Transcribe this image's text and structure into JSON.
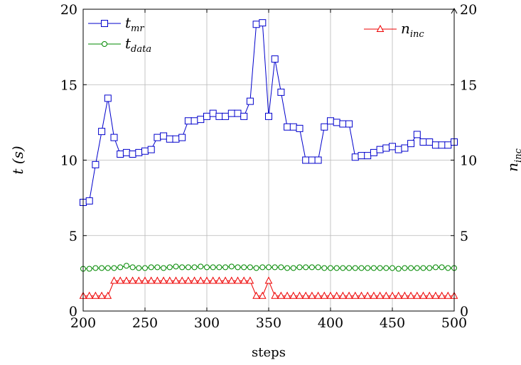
{
  "chart_data": {
    "type": "line",
    "xlabel": "steps",
    "ylabel_left": "t (s)",
    "ylabel_right": "n_inc",
    "xlim": [
      200,
      500
    ],
    "ylim_left": [
      0,
      20
    ],
    "ylim_right": [
      0,
      20
    ],
    "x_ticks": [
      200,
      250,
      300,
      350,
      400,
      450,
      500
    ],
    "y_ticks_left": [
      0,
      5,
      10,
      15,
      20
    ],
    "y_ticks_right": [
      0,
      5,
      10,
      15,
      20
    ],
    "grid": true,
    "legend_left": "top-left",
    "legend_right": "top-right",
    "x": [
      200,
      205,
      210,
      215,
      220,
      225,
      230,
      235,
      240,
      245,
      250,
      255,
      260,
      265,
      270,
      275,
      280,
      285,
      290,
      295,
      300,
      305,
      310,
      315,
      320,
      325,
      330,
      335,
      340,
      345,
      350,
      355,
      360,
      365,
      370,
      375,
      380,
      385,
      390,
      395,
      400,
      405,
      410,
      415,
      420,
      425,
      430,
      435,
      440,
      445,
      450,
      455,
      460,
      465,
      470,
      475,
      480,
      485,
      490,
      495,
      500
    ],
    "series": [
      {
        "name": "t_mr",
        "axis": "left",
        "color": "#0000cc",
        "marker": "square",
        "values": [
          7.2,
          7.3,
          9.7,
          11.9,
          14.1,
          11.5,
          10.4,
          10.5,
          10.4,
          10.5,
          10.6,
          10.7,
          11.5,
          11.6,
          11.4,
          11.4,
          11.5,
          12.6,
          12.6,
          12.7,
          12.9,
          13.1,
          12.9,
          12.9,
          13.1,
          13.1,
          12.9,
          13.9,
          19.0,
          19.1,
          12.9,
          16.7,
          14.5,
          12.2,
          12.2,
          12.1,
          10.0,
          10.0,
          10.0,
          12.2,
          12.6,
          12.5,
          12.4,
          12.4,
          10.2,
          10.3,
          10.3,
          10.5,
          10.7,
          10.8,
          10.9,
          10.7,
          10.8,
          11.1,
          11.7,
          11.2,
          11.2,
          11.0,
          11.0,
          11.0,
          11.2
        ]
      },
      {
        "name": "t_data",
        "axis": "left",
        "color": "#008800",
        "marker": "circle",
        "values": [
          2.8,
          2.8,
          2.85,
          2.85,
          2.85,
          2.85,
          2.9,
          3.0,
          2.9,
          2.85,
          2.85,
          2.9,
          2.9,
          2.85,
          2.9,
          2.95,
          2.9,
          2.9,
          2.9,
          2.95,
          2.9,
          2.9,
          2.9,
          2.9,
          2.95,
          2.9,
          2.9,
          2.9,
          2.85,
          2.9,
          2.9,
          2.9,
          2.9,
          2.85,
          2.85,
          2.9,
          2.9,
          2.9,
          2.9,
          2.85,
          2.85,
          2.85,
          2.85,
          2.85,
          2.85,
          2.85,
          2.85,
          2.85,
          2.85,
          2.85,
          2.85,
          2.8,
          2.85,
          2.85,
          2.85,
          2.85,
          2.85,
          2.9,
          2.9,
          2.85,
          2.85
        ]
      },
      {
        "name": "n_inc",
        "axis": "right",
        "color": "#ee0000",
        "marker": "triangle",
        "values": [
          1,
          1,
          1,
          1,
          1,
          2,
          2,
          2,
          2,
          2,
          2,
          2,
          2,
          2,
          2,
          2,
          2,
          2,
          2,
          2,
          2,
          2,
          2,
          2,
          2,
          2,
          2,
          2,
          1,
          1,
          2,
          1,
          1,
          1,
          1,
          1,
          1,
          1,
          1,
          1,
          1,
          1,
          1,
          1,
          1,
          1,
          1,
          1,
          1,
          1,
          1,
          1,
          1,
          1,
          1,
          1,
          1,
          1,
          1,
          1,
          1
        ]
      }
    ],
    "legend_labels": {
      "t_mr": {
        "base": "t",
        "sub": "mr"
      },
      "t_data": {
        "base": "t",
        "sub": "data"
      },
      "n_inc": {
        "base": "n",
        "sub": "inc"
      }
    },
    "axis_label_parts": {
      "left": "t (s)",
      "right_base": "n",
      "right_sub": "inc"
    }
  }
}
